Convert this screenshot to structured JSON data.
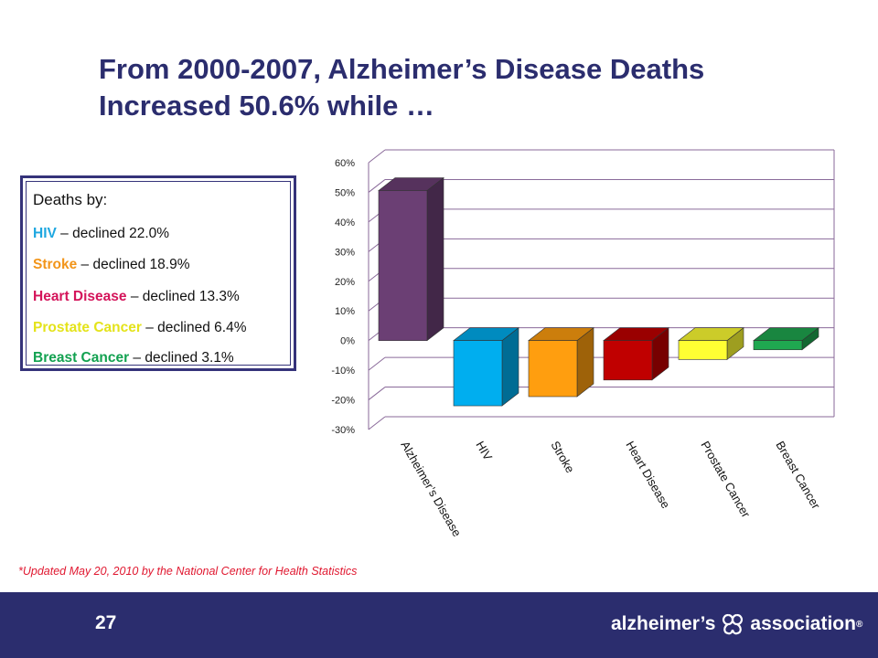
{
  "title": {
    "line1": "From 2000-2007, Alzheimer’s Disease Deaths",
    "line2": "Increased 50.6% while …"
  },
  "legend": {
    "heading": "Deaths by:",
    "items": [
      {
        "category": "HIV",
        "text": " – declined 22.0%",
        "color": "#1ea7e0"
      },
      {
        "category": "Stroke",
        "text": " – declined 18.9%",
        "color": "#f2951a"
      },
      {
        "category": "Heart Disease",
        "text": " – declined 13.3%",
        "color": "#d4145a"
      },
      {
        "category": "Prostate Cancer",
        "text": " – declined 6.4%",
        "color": "#e4e31a"
      },
      {
        "category": "Breast Cancer",
        "text": " – declined 3.1%",
        "color": "#12a150"
      }
    ]
  },
  "chart_data": {
    "type": "bar",
    "categories": [
      "Alzheimer’s Disease",
      "HIV",
      "Stroke",
      "Heart Disease",
      "Prostate Cancer",
      "Breast Cancer"
    ],
    "values": [
      50.6,
      -22.0,
      -18.9,
      -13.3,
      -6.4,
      -3.1
    ],
    "colors": [
      "#6b3f74",
      "#00aeef",
      "#ff9e0f",
      "#c00000",
      "#ffff33",
      "#1fa850"
    ],
    "y_ticks": [
      "60%",
      "50%",
      "40%",
      "30%",
      "20%",
      "10%",
      "0%",
      "-10%",
      "-20%",
      "-30%"
    ],
    "ylim": [
      -30,
      60
    ],
    "grid": true,
    "three_d": true,
    "legend": "none"
  },
  "footnote": "*Updated May 20, 2010 by the National Center for Health Statistics",
  "footer": {
    "page_number": "27",
    "brand_left": "alzheimer’s",
    "brand_right": "association",
    "brand_mark": "®",
    "background": "#2b2d6e"
  }
}
